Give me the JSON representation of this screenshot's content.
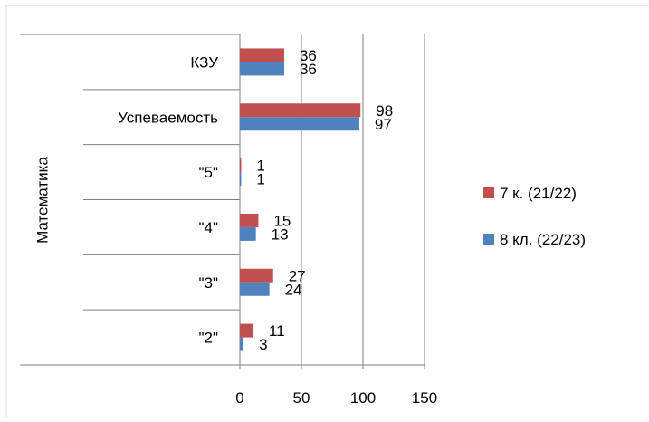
{
  "chart_data": {
    "type": "bar",
    "orientation": "horizontal",
    "group_label": "Математика",
    "categories": [
      "КЗУ",
      "Успеваемость",
      "\"5\"",
      "\"4\"",
      "\"3\"",
      "\"2\""
    ],
    "series": [
      {
        "name": "7 к. (21/22)",
        "color": "#c0504d",
        "values": [
          36,
          98,
          1,
          15,
          27,
          11
        ]
      },
      {
        "name": "8 кл. (22/23)",
        "color": "#4f81bd",
        "values": [
          36,
          97,
          1,
          13,
          24,
          3
        ]
      }
    ],
    "xlim": [
      0,
      150
    ],
    "xticks": [
      "0",
      "50",
      "100",
      "150"
    ],
    "grid": true,
    "legend_position": "right"
  }
}
